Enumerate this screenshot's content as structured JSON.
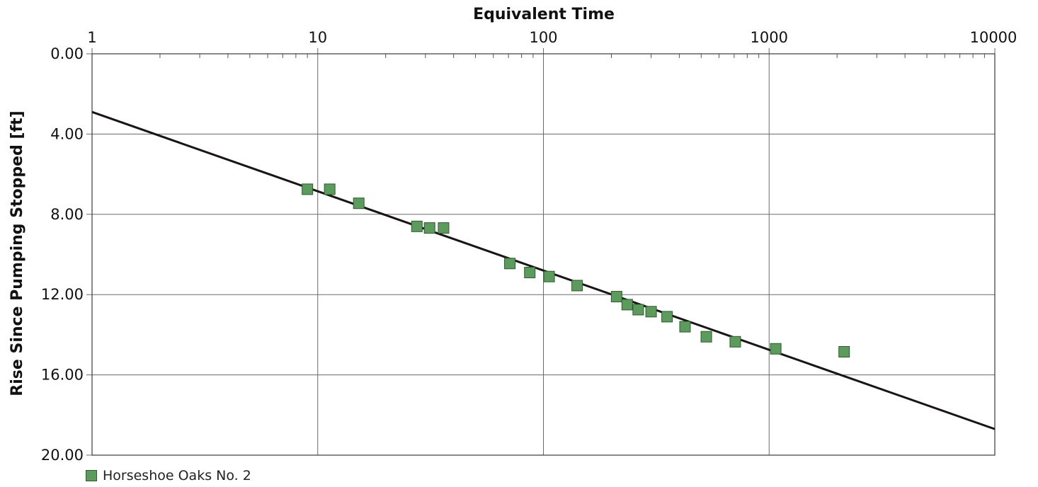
{
  "chart_data": {
    "type": "scatter",
    "title": "",
    "xlabel": "Equivalent Time",
    "ylabel": "Rise Since Pumping Stopped [ft]",
    "x_scale": "log",
    "xlim": [
      1,
      10000
    ],
    "ylim": [
      20.0,
      0.0
    ],
    "y_axis_inverted": true,
    "x_ticks": [
      1,
      10,
      100,
      1000,
      10000
    ],
    "x_tick_labels": [
      "1",
      "10",
      "100",
      "1000",
      "10000"
    ],
    "y_ticks": [
      0,
      4,
      8,
      12,
      16,
      20
    ],
    "y_tick_labels": [
      "0.00",
      "4.00",
      "8.00",
      "12.00",
      "16.00",
      "20.00"
    ],
    "x_axis_position": "top",
    "grid": true,
    "legend_position": "bottom-left",
    "series": [
      {
        "name": "Horseshoe Oaks No. 2",
        "color": "#5d9a5d",
        "marker": "square",
        "points": [
          {
            "x": 9,
            "y": 6.75
          },
          {
            "x": 11.3,
            "y": 6.75
          },
          {
            "x": 15.2,
            "y": 7.45
          },
          {
            "x": 27.5,
            "y": 8.6
          },
          {
            "x": 31.3,
            "y": 8.68
          },
          {
            "x": 36.1,
            "y": 8.68
          },
          {
            "x": 71,
            "y": 10.45
          },
          {
            "x": 87,
            "y": 10.9
          },
          {
            "x": 106,
            "y": 11.1
          },
          {
            "x": 141,
            "y": 11.55
          },
          {
            "x": 211,
            "y": 12.1
          },
          {
            "x": 235,
            "y": 12.5
          },
          {
            "x": 263,
            "y": 12.75
          },
          {
            "x": 300,
            "y": 12.85
          },
          {
            "x": 353,
            "y": 13.1
          },
          {
            "x": 424,
            "y": 13.6
          },
          {
            "x": 527,
            "y": 14.1
          },
          {
            "x": 708,
            "y": 14.35
          },
          {
            "x": 1070,
            "y": 14.7
          },
          {
            "x": 2150,
            "y": 14.85
          }
        ]
      }
    ],
    "fit_line": {
      "color": "#1a1414",
      "points": [
        {
          "x": 1,
          "y": 2.9
        },
        {
          "x": 10000,
          "y": 18.7
        }
      ]
    }
  }
}
